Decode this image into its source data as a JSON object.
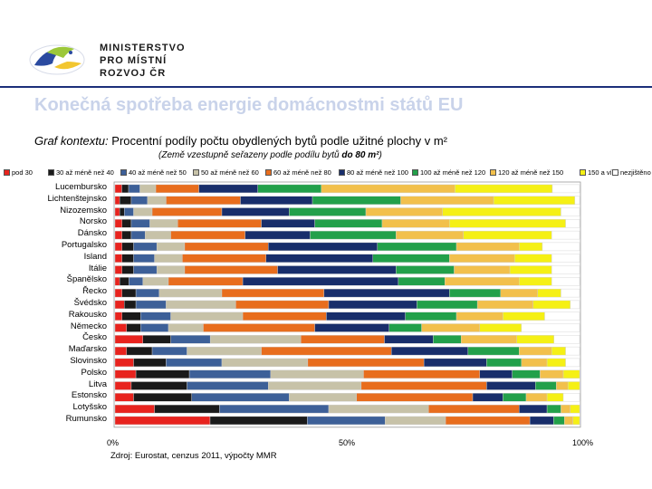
{
  "header": {
    "ministry_line1": "MINISTERSTVO",
    "ministry_line2": "PRO MÍSTNÍ",
    "ministry_line3": "ROZVOJ ČR"
  },
  "title": "Konečná spotřeba energie domácnostmi států EU",
  "subtitle_lead": "Graf kontextu:",
  "subtitle_main": " Procentní podíly počtu obydlených bytů podle užitné plochy v m²",
  "note_prefix": "(Země vzestupně seřazeny podle podílu bytů ",
  "note_bold": "do 80 m²",
  "note_suffix": ")",
  "source": "Zdroj: Eurostat, cenzus 2011, výpočty MMR",
  "chart_data": {
    "type": "bar",
    "orientation": "horizontal",
    "stacked": "percent",
    "xlim": [
      0,
      100
    ],
    "xticks": [
      "0%",
      "50%",
      "100%"
    ],
    "legend_position": "top",
    "colors": {
      "pod30": "#e8231e",
      "30to40": "#1a1a1a",
      "40to50": "#3d6098",
      "50to60": "#c7c2a8",
      "60to80": "#e86d1d",
      "80to100": "#182e6b",
      "100to120": "#22a04a",
      "120to150": "#f2c04c",
      "150plus": "#f5f015",
      "unknown": "#ffffff"
    },
    "categories": [
      "Lucembursko",
      "Lichtenštejnsko",
      "Nizozemsko",
      "Norsko",
      "Dánsko",
      "Portugalsko",
      "Island",
      "Itálie",
      "Španělsko",
      "Řecko",
      "Švédsko",
      "Rakousko",
      "Německo",
      "Česko",
      "Maďarsko",
      "Slovinsko",
      "Polsko",
      "Litva",
      "Estonsko",
      "Lotyšsko",
      "Rumunsko"
    ],
    "series": [
      {
        "name": "pod 30",
        "key": "pod30",
        "values": [
          1.5,
          1.0,
          1.0,
          1.5,
          1.5,
          1.5,
          1.5,
          1.5,
          1.0,
          1.5,
          2.0,
          1.5,
          2.5,
          6.0,
          2.5,
          4.0,
          4.5,
          3.5,
          4.0,
          8.5,
          22.0
        ]
      },
      {
        "name": "30 až méně než 40",
        "key": "30to40",
        "values": [
          1.5,
          2.5,
          1.0,
          2.0,
          2.0,
          2.5,
          2.5,
          2.5,
          2.0,
          3.0,
          2.5,
          4.0,
          3.0,
          6.0,
          5.5,
          7.0,
          11.5,
          12.0,
          12.5,
          14.0,
          22.5
        ]
      },
      {
        "name": "40 až méně než 50",
        "key": "40to50",
        "values": [
          2.5,
          3.5,
          2.0,
          4.0,
          3.0,
          5.0,
          4.5,
          5.0,
          3.0,
          5.0,
          6.5,
          6.5,
          6.0,
          8.5,
          7.5,
          12.0,
          17.5,
          17.5,
          21.0,
          23.5,
          18.0
        ]
      },
      {
        "name": "50 až méně než 60",
        "key": "50to60",
        "values": [
          3.5,
          4.0,
          4.0,
          6.0,
          5.5,
          6.0,
          6.0,
          6.0,
          5.5,
          13.5,
          15.0,
          15.5,
          7.5,
          19.5,
          16.0,
          18.5,
          20.0,
          20.0,
          14.5,
          21.5,
          14.0
        ]
      },
      {
        "name": "60 až méně než 80",
        "key": "60to80",
        "values": [
          9.5,
          16.0,
          15.0,
          18.0,
          16.0,
          18.0,
          18.0,
          20.0,
          16.0,
          22.0,
          20.0,
          18.0,
          24.0,
          18.0,
          28.0,
          25.0,
          25.0,
          27.0,
          25.0,
          19.5,
          19.5
        ]
      },
      {
        "name": "80 až méně než 100",
        "key": "80to100",
        "values": [
          13.0,
          15.5,
          14.5,
          11.5,
          14.0,
          23.5,
          23.0,
          25.5,
          33.5,
          27.0,
          19.0,
          17.0,
          16.0,
          10.5,
          16.5,
          13.5,
          7.0,
          10.5,
          6.5,
          6.0,
          5.5
        ]
      },
      {
        "name": "100 až méně než 120",
        "key": "100to120",
        "values": [
          14.0,
          19.0,
          16.5,
          14.5,
          18.5,
          17.0,
          16.5,
          12.5,
          10.0,
          11.0,
          13.0,
          11.0,
          7.0,
          6.0,
          11.0,
          7.5,
          6.0,
          4.5,
          5.0,
          3.0,
          2.5
        ]
      },
      {
        "name": "120 až méně než 150",
        "key": "120to150",
        "values": [
          29.5,
          20.0,
          16.5,
          14.5,
          14.5,
          13.5,
          14.0,
          12.0,
          16.0,
          8.0,
          12.0,
          10.0,
          12.5,
          12.0,
          7.0,
          5.5,
          5.0,
          2.5,
          4.5,
          2.0,
          2.0
        ]
      },
      {
        "name": "150 a více",
        "key": "150plus",
        "values": [
          21.5,
          17.5,
          25.5,
          25.0,
          19.0,
          5.0,
          8.0,
          9.0,
          7.0,
          5.0,
          8.0,
          9.0,
          9.0,
          8.0,
          3.0,
          4.0,
          3.5,
          2.5,
          3.5,
          2.0,
          1.5
        ]
      },
      {
        "name": "nezjištěno",
        "key": "unknown",
        "values": [
          6.0,
          1.0,
          4.0,
          3.0,
          6.0,
          8.0,
          6.0,
          6.0,
          6.0,
          4.0,
          2.0,
          7.5,
          12.5,
          5.5,
          3.0,
          3.0,
          0.0,
          0.0,
          3.5,
          0.0,
          0.0
        ]
      }
    ]
  }
}
